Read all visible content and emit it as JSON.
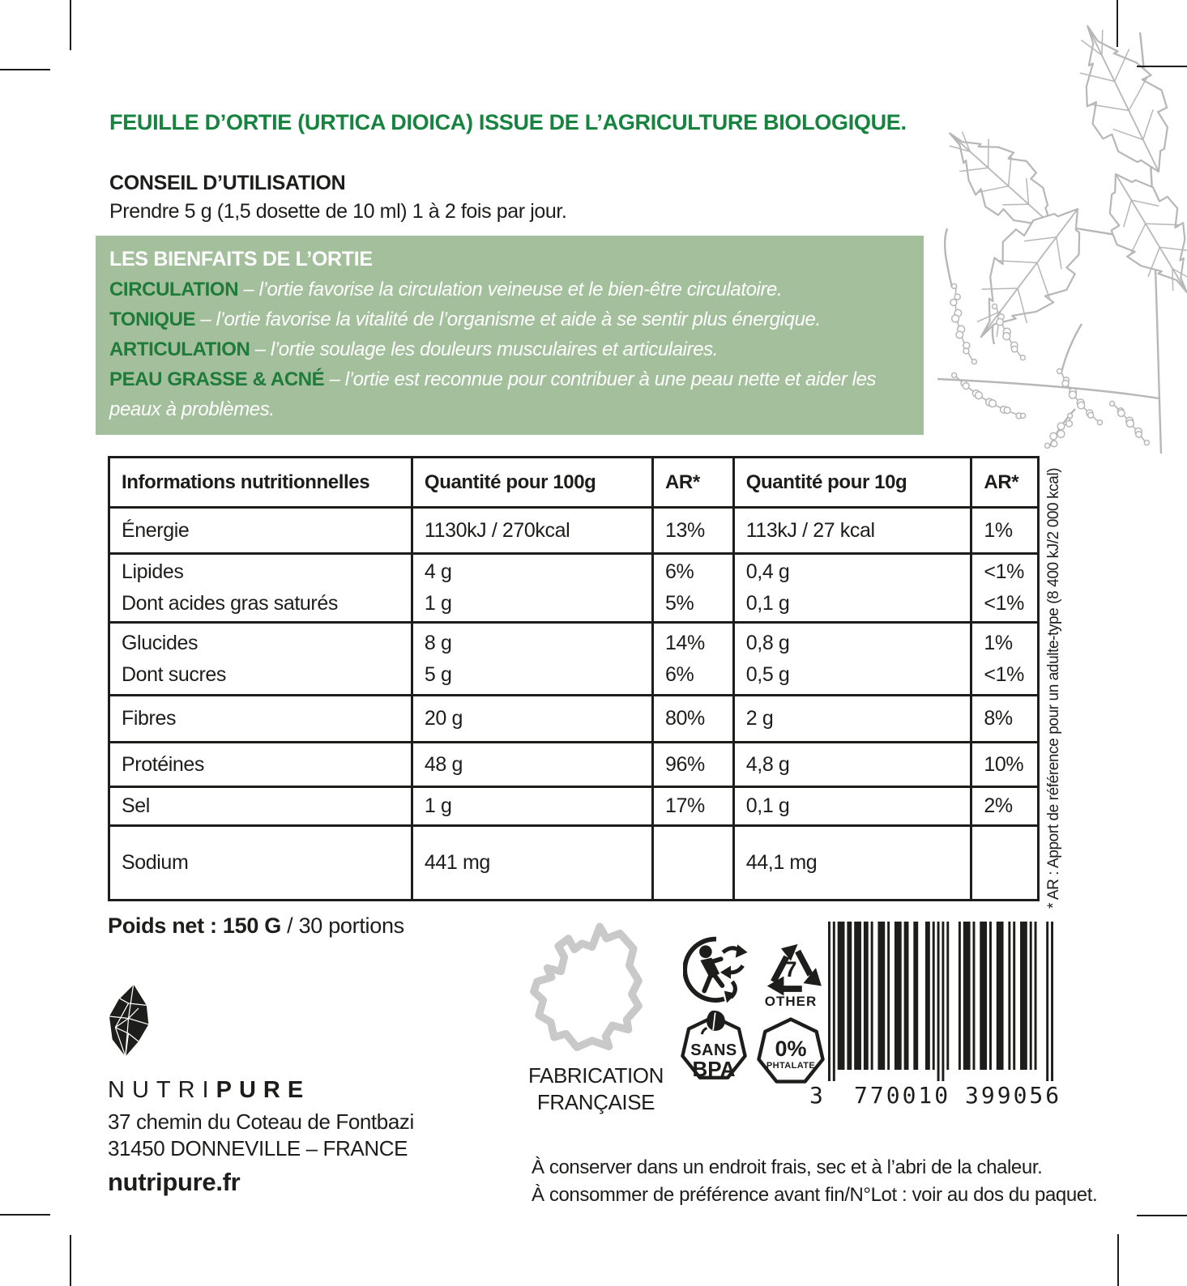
{
  "title": "FEUILLE D’ORTIE (URTICA DIOICA) ISSUE DE L’AGRICULTURE BIOLOGIQUE.",
  "usage": {
    "heading": "CONSEIL D’UTILISATION",
    "text": "Prendre 5 g (1,5 dosette de 10 ml) 1 à 2 fois par jour."
  },
  "benefits": {
    "heading": "LES BIENFAITS DE L’ORTIE",
    "items": [
      {
        "keyword": "CIRCULATION",
        "text": "– l’ortie favorise la circulation veineuse et le bien-être circulatoire."
      },
      {
        "keyword": "TONIQUE",
        "text": "– l’ortie favorise la vitalité de l’organisme et aide à se sentir plus énergique."
      },
      {
        "keyword": "ARTICULATION",
        "text": "– l’ortie soulage les douleurs musculaires et articulaires."
      },
      {
        "keyword": "PEAU GRASSE & ACNÉ",
        "text": "– l’ortie est reconnue pour contribuer à une peau nette et aider les peaux à problèmes."
      }
    ]
  },
  "nutrition_table": {
    "headers": [
      "Informations nutritionnelles",
      "Quantité pour 100g",
      "AR*",
      "Quantité pour 10g",
      "AR*"
    ],
    "rows": [
      {
        "name": [
          "Énergie"
        ],
        "q100": [
          "1130kJ / 270kcal"
        ],
        "ar100": [
          "13%"
        ],
        "q10": [
          "113kJ / 27 kcal"
        ],
        "ar10": [
          "1%"
        ]
      },
      {
        "name": [
          "Lipides",
          "Dont acides gras saturés"
        ],
        "q100": [
          "4 g",
          "1 g"
        ],
        "ar100": [
          "6%",
          "5%"
        ],
        "q10": [
          "0,4 g",
          "0,1 g"
        ],
        "ar10": [
          "<1%",
          "<1%"
        ]
      },
      {
        "name": [
          "Glucides",
          "Dont sucres"
        ],
        "q100": [
          "8 g",
          "5 g"
        ],
        "ar100": [
          "14%",
          "6%"
        ],
        "q10": [
          "0,8 g",
          "0,5 g"
        ],
        "ar10": [
          "1%",
          "<1%"
        ]
      },
      {
        "name": [
          "Fibres"
        ],
        "q100": [
          "20 g"
        ],
        "ar100": [
          "80%"
        ],
        "q10": [
          "2 g"
        ],
        "ar10": [
          "8%"
        ]
      },
      {
        "name": [
          "Protéines"
        ],
        "q100": [
          "48 g"
        ],
        "ar100": [
          "96%"
        ],
        "q10": [
          "4,8 g"
        ],
        "ar10": [
          "10%"
        ]
      },
      {
        "name": [
          "Sel"
        ],
        "q100": [
          "1 g"
        ],
        "ar100": [
          "17%"
        ],
        "q10": [
          "0,1 g"
        ],
        "ar10": [
          "2%"
        ]
      },
      {
        "name": [
          "Sodium"
        ],
        "q100": [
          "441 mg"
        ],
        "ar100": [
          ""
        ],
        "q10": [
          "44,1 mg"
        ],
        "ar10": [
          ""
        ]
      }
    ]
  },
  "footnote_vertical": "* AR : Apport de référence pour un adulte-type (8 400 kJ/2 000 kcal)",
  "net_weight": {
    "bold": "Poids net : 150 G",
    "regular": " / 30 portions"
  },
  "brand": {
    "name_light": "NUTRI",
    "name_bold": "PURE",
    "address_line1": "37 chemin du Coteau de Fontbazi",
    "address_line2": "31450 DONNEVILLE – FRANCE",
    "website": "nutripure.fr"
  },
  "origin": {
    "line1": "FABRICATION",
    "line2": "FRANÇAISE"
  },
  "badges": {
    "recycle_other": {
      "number": "7",
      "label": "OTHER"
    },
    "sans_bpa": {
      "line1": "SANS",
      "line2": "BPA"
    },
    "phtalate": {
      "line1": "0%",
      "line2": "PHTALATE"
    }
  },
  "barcode": {
    "digits": "3770010399056",
    "display_first": "3",
    "display_left": "770010",
    "display_right": "399056"
  },
  "storage": {
    "line1": "À conserver dans un endroit frais, sec et à l’abri de la chaleur.",
    "line2": "À consommer de préférence avant fin/N°Lot : voir au dos du paquet."
  },
  "colors": {
    "title_green": "#16833f",
    "benefits_background": "#a3bf9b",
    "keyword_green": "#1f7b3c",
    "ink": "#1d1d1b",
    "illustration_gray": "#b7b7b7",
    "map_gray": "#c9c9c9"
  }
}
